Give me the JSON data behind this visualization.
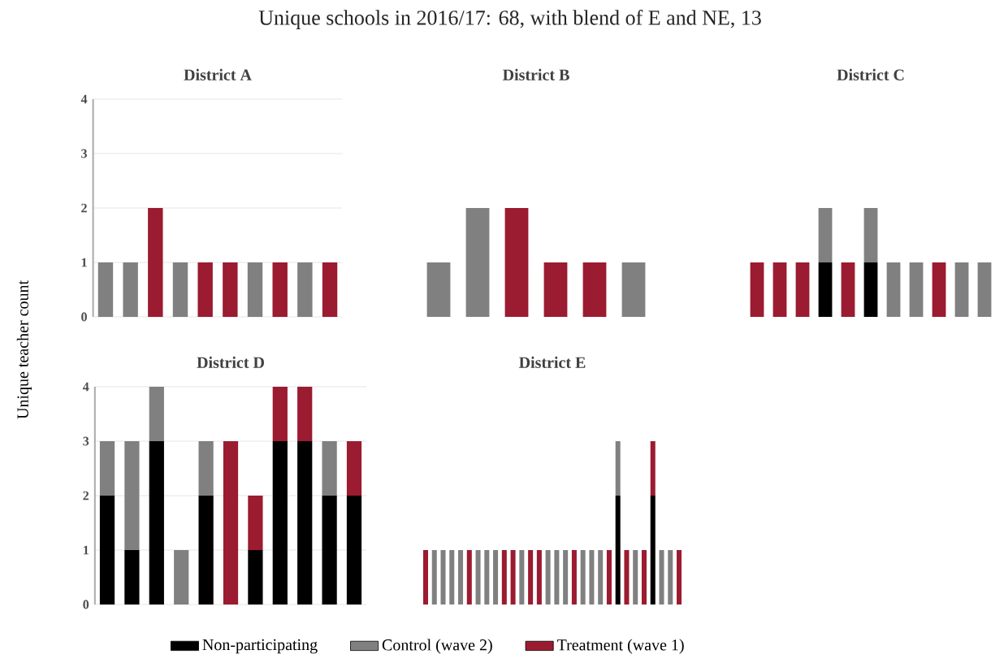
{
  "chart_data": [
    {
      "type": "bar",
      "title": "Unique schools in 2016/17: 68, with blend of E and NE, 13",
      "subtitle": "District A",
      "stacked": true,
      "categories": [
        null,
        null,
        null,
        null,
        null,
        null,
        null,
        null,
        null,
        null
      ],
      "ylim": [
        0,
        4
      ],
      "yticks": [
        0,
        1,
        2,
        3,
        4
      ],
      "grid": "y",
      "tick_labels": "y",
      "series": [
        {
          "color": "#000000",
          "values": [
            null,
            null,
            null,
            null,
            null,
            null,
            null,
            null,
            null,
            null
          ]
        },
        {
          "color": "#808080",
          "values": [
            1,
            1,
            null,
            1,
            null,
            null,
            1,
            null,
            1,
            null
          ]
        },
        {
          "color": "#9b1b30",
          "values": [
            null,
            null,
            2,
            null,
            1,
            1,
            null,
            1,
            null,
            1
          ]
        }
      ]
    },
    {
      "type": "bar",
      "subtitle": "District B",
      "stacked": true,
      "categories": [
        null,
        null,
        null,
        null,
        null,
        null
      ],
      "ylim": [
        0,
        4
      ],
      "yticks": [
        0,
        1,
        2,
        3,
        4
      ],
      "grid": "y",
      "tick_labels": false,
      "series": [
        {
          "color": "#808080",
          "values": [
            1,
            2,
            null,
            null,
            null,
            1
          ]
        },
        {
          "color": "#9b1b30",
          "values": [
            null,
            null,
            2,
            1,
            1,
            null
          ]
        }
      ]
    },
    {
      "type": "bar",
      "subtitle": "District C",
      "stacked": true,
      "categories": [
        null,
        null,
        null,
        null,
        null,
        null,
        null,
        null,
        null,
        null,
        null
      ],
      "ylim": [
        0,
        4
      ],
      "yticks": [
        0,
        1,
        2,
        3,
        4
      ],
      "grid": "y",
      "tick_labels": false,
      "series": [
        {
          "color": "#000000",
          "values": [
            null,
            null,
            null,
            1,
            null,
            1,
            null,
            null,
            null,
            null,
            null
          ]
        },
        {
          "color": "#808080",
          "values": [
            null,
            null,
            null,
            1,
            null,
            1,
            1,
            1,
            null,
            1,
            1
          ]
        },
        {
          "color": "#9b1b30",
          "values": [
            1,
            1,
            1,
            null,
            1,
            null,
            null,
            null,
            1,
            null,
            null
          ]
        }
      ]
    },
    {
      "type": "bar",
      "subtitle": "District D",
      "ylabel": "Unique teacher count",
      "stacked": true,
      "categories": [
        null,
        null,
        null,
        null,
        null,
        null,
        null,
        null,
        null,
        null,
        null
      ],
      "ylim": [
        0,
        4
      ],
      "yticks": [
        0,
        1,
        2,
        3,
        4
      ],
      "grid": "y",
      "tick_labels": "y",
      "series": [
        {
          "color": "#000000",
          "values": [
            2,
            1,
            3,
            null,
            2,
            null,
            1,
            3,
            3,
            2,
            2
          ]
        },
        {
          "color": "#808080",
          "values": [
            1,
            2,
            1,
            1,
            1,
            null,
            null,
            null,
            null,
            1,
            null
          ]
        },
        {
          "color": "#9b1b30",
          "values": [
            null,
            null,
            null,
            null,
            null,
            3,
            1,
            1,
            1,
            null,
            1
          ]
        }
      ]
    },
    {
      "type": "bar",
      "subtitle": "District E",
      "stacked": true,
      "categories": [
        null,
        null,
        null,
        null,
        null,
        null,
        null,
        null,
        null,
        null,
        null,
        null,
        null,
        null,
        null,
        null,
        null,
        null,
        null,
        null,
        null,
        null,
        null,
        null,
        null,
        null,
        null,
        null,
        null,
        null
      ],
      "ylim": [
        0,
        4
      ],
      "yticks": [
        0,
        1,
        2,
        3,
        4
      ],
      "grid": "y",
      "tick_labels": false,
      "legend": "bottom",
      "series": [
        {
          "name": "Non-participating",
          "color": "#000000",
          "values": [
            null,
            null,
            null,
            null,
            null,
            null,
            null,
            null,
            null,
            null,
            null,
            null,
            null,
            null,
            null,
            null,
            null,
            null,
            null,
            null,
            null,
            null,
            2,
            null,
            null,
            null,
            2,
            null,
            null,
            null
          ]
        },
        {
          "name": "Control (wave 2)",
          "color": "#808080",
          "values": [
            null,
            1,
            1,
            1,
            1,
            null,
            1,
            1,
            1,
            null,
            null,
            1,
            null,
            null,
            1,
            1,
            1,
            null,
            1,
            1,
            1,
            null,
            1,
            null,
            1,
            null,
            null,
            1,
            1,
            null
          ]
        },
        {
          "name": "Treatment (wave 1)",
          "color": "#9b1b30",
          "values": [
            1,
            null,
            null,
            null,
            null,
            1,
            null,
            null,
            null,
            1,
            1,
            null,
            1,
            1,
            null,
            null,
            null,
            1,
            null,
            null,
            null,
            1,
            null,
            1,
            null,
            1,
            1,
            null,
            null,
            1
          ]
        }
      ]
    }
  ]
}
